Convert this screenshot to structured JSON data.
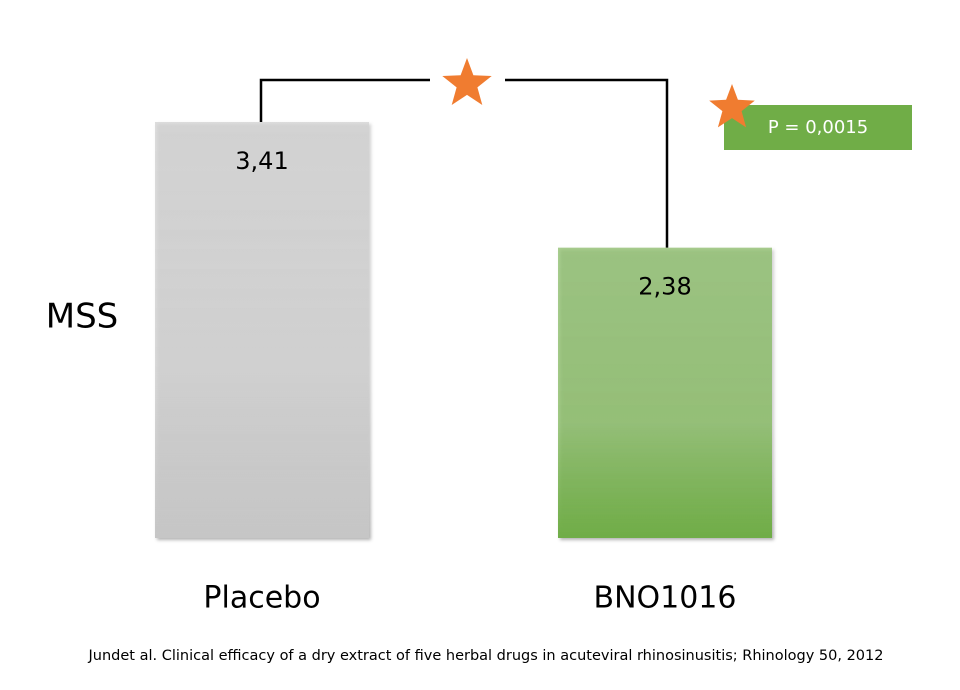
{
  "chart_data": {
    "type": "bar",
    "y_label": "MSS",
    "categories": [
      "Placebo",
      "BNO1016"
    ],
    "values": [
      3.41,
      2.38
    ],
    "value_labels": [
      "3,41",
      "2,38"
    ],
    "colors": [
      "#c6c6c6",
      "#70ad47"
    ],
    "annotation": {
      "text": "P = 0,0015",
      "color": "#70ad47",
      "star_color": "#f07c30"
    },
    "source": "Jundet al. Clinical efficacy of a dry extract of five herbal drugs in acuteviral rhinosinusitis; Rhinology 50, 2012"
  }
}
